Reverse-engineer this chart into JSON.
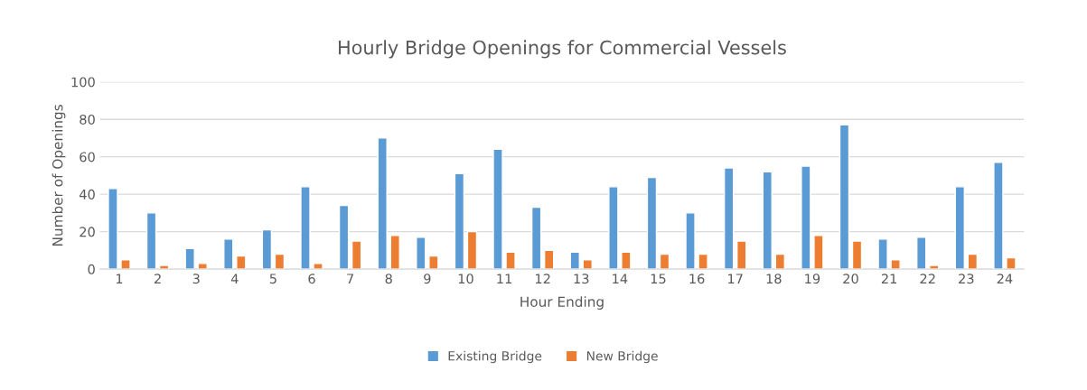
{
  "chart_data": {
    "type": "bar",
    "title": "Hourly Bridge Openings for Commercial Vessels",
    "xlabel": "Hour Ending",
    "ylabel": "Number of Openings",
    "categories": [
      "1",
      "2",
      "3",
      "4",
      "5",
      "6",
      "7",
      "8",
      "9",
      "10",
      "11",
      "12",
      "13",
      "14",
      "15",
      "16",
      "17",
      "18",
      "19",
      "20",
      "21",
      "22",
      "23",
      "24"
    ],
    "series": [
      {
        "name": "Existing Bridge",
        "color": "#5b9bd5",
        "values": [
          43,
          30,
          11,
          16,
          21,
          44,
          34,
          70,
          17,
          51,
          64,
          33,
          9,
          44,
          49,
          30,
          54,
          52,
          55,
          77,
          16,
          17,
          44,
          57
        ]
      },
      {
        "name": "New Bridge",
        "color": "#ed7d31",
        "values": [
          5,
          2,
          3,
          7,
          8,
          3,
          15,
          18,
          7,
          20,
          9,
          10,
          5,
          9,
          8,
          8,
          15,
          8,
          18,
          15,
          5,
          2,
          8,
          6
        ]
      }
    ],
    "ylim": [
      0,
      100
    ],
    "yticks": [
      0,
      20,
      40,
      60,
      80,
      100
    ],
    "grid": "y",
    "legend": "bottom"
  }
}
